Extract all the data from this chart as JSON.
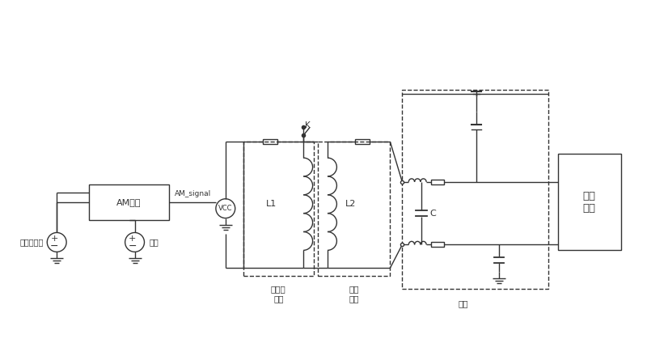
{
  "bg_color": "#ffffff",
  "line_color": "#333333",
  "fig_width": 8.0,
  "fig_height": 4.19,
  "labels": {
    "mod_source": "调制信号源",
    "carrier": "载波",
    "am_mod": "AM调制",
    "am_signal": "AM_signal",
    "reader_ant": "读卡器\n天线",
    "tag_ant": "标签\n天线",
    "package": "封装",
    "tag_chip": "标签\n芯片",
    "L1": "L1",
    "L2": "L2",
    "C": "C",
    "K": "K",
    "VCC": "VCC"
  }
}
